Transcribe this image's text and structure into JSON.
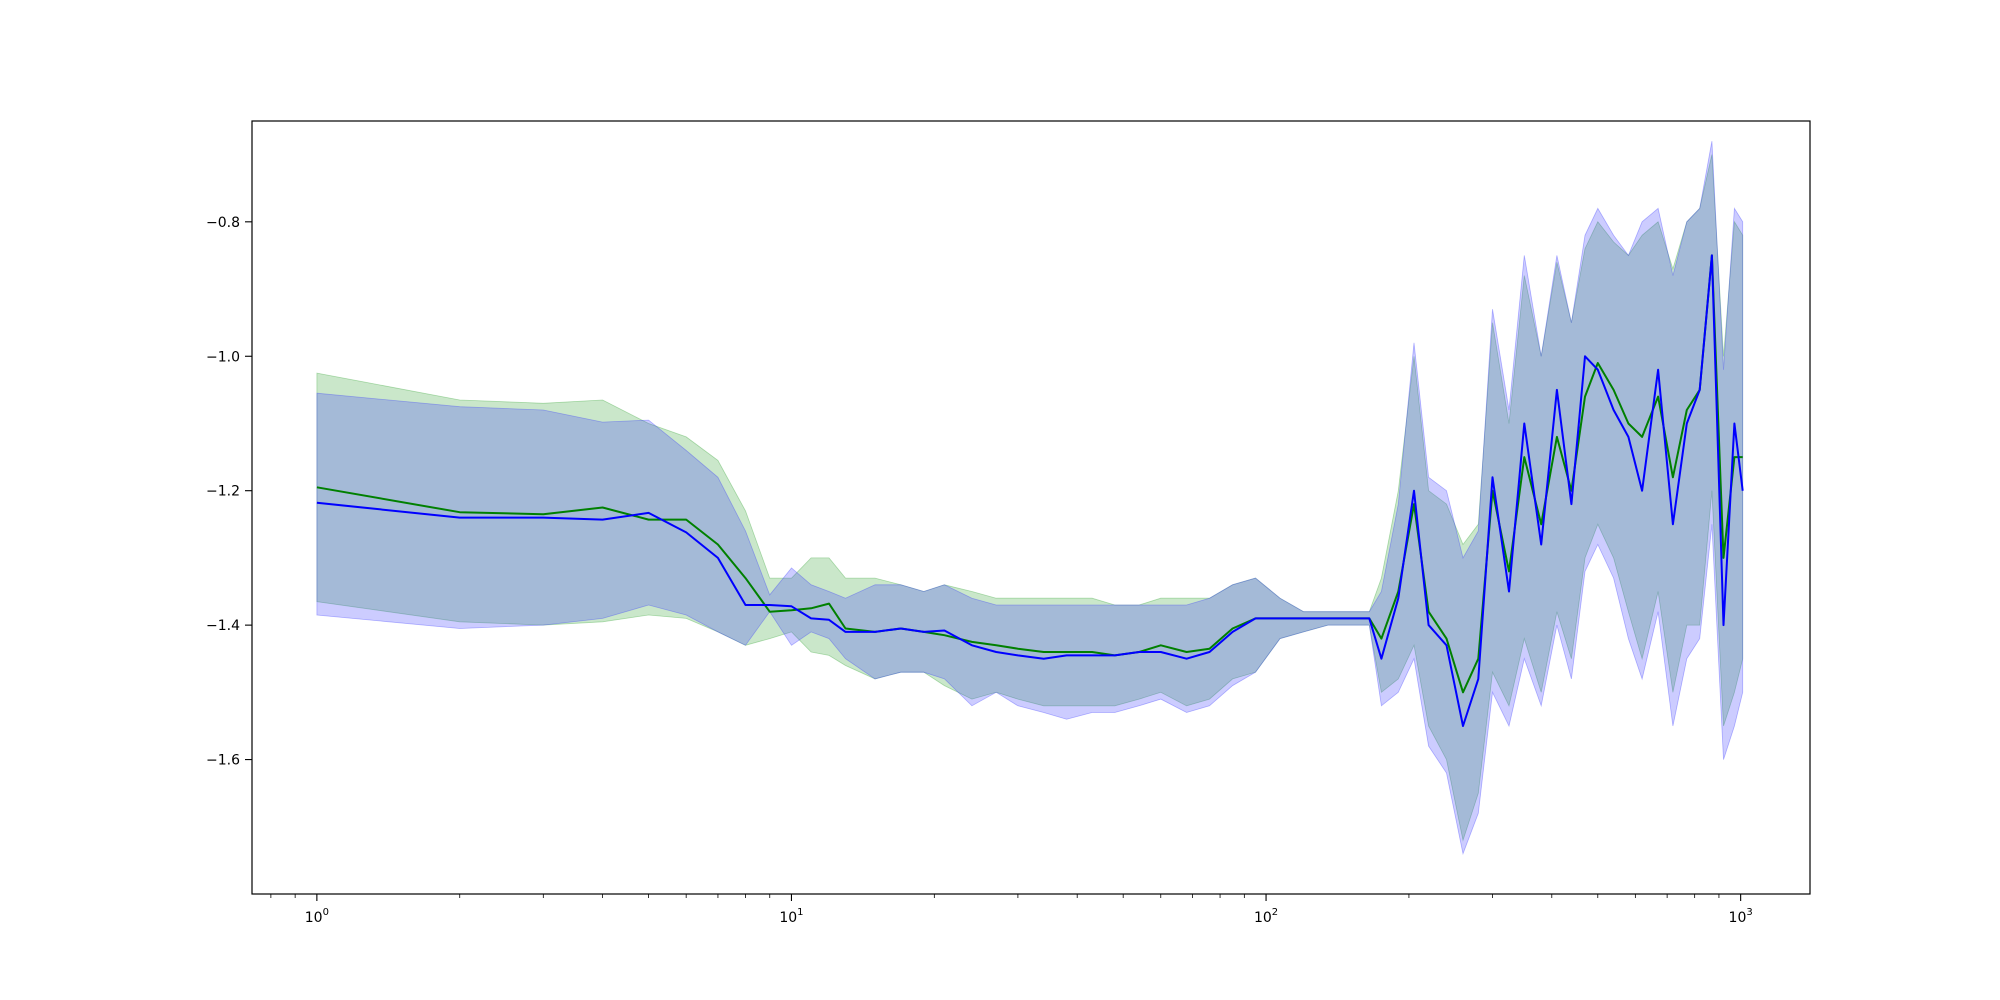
{
  "colors": {
    "green": "#008000",
    "blue": "#0000ff",
    "green_fill": "#2ca02c",
    "blue_fill": "#3333ff",
    "overlap": "#7f94c8"
  },
  "chart_data": {
    "type": "line",
    "title": "",
    "xlabel": "",
    "ylabel": "",
    "xscale": "log",
    "xlim": [
      0.73,
      1400
    ],
    "ylim": [
      -1.8,
      -0.65
    ],
    "x_tick_labels": [
      {
        "base": "10",
        "exp": "0",
        "value": 1
      },
      {
        "base": "10",
        "exp": "1",
        "value": 10
      },
      {
        "base": "10",
        "exp": "2",
        "value": 100
      },
      {
        "base": "10",
        "exp": "3",
        "value": 1000
      }
    ],
    "y_tick_labels": [
      {
        "label": "−1.6",
        "value": -1.6
      },
      {
        "label": "−1.4",
        "value": -1.4
      },
      {
        "label": "−1.2",
        "value": -1.2
      },
      {
        "label": "−1.0",
        "value": -1.0
      },
      {
        "label": "−0.8",
        "value": -0.8
      }
    ],
    "grid": false,
    "legend": "none",
    "series": [
      {
        "color_key": "green",
        "x": [
          1,
          2,
          3,
          4,
          5,
          6,
          7,
          8,
          9,
          10,
          11,
          12,
          13,
          15,
          17,
          19,
          21,
          24,
          27,
          30,
          34,
          38,
          43,
          48,
          54,
          60,
          68,
          76,
          85,
          95,
          107,
          120,
          135,
          150,
          165,
          175,
          190,
          205,
          220,
          240,
          260,
          280,
          300,
          325,
          350,
          380,
          410,
          440,
          470,
          500,
          540,
          580,
          620,
          670,
          720,
          770,
          820,
          870,
          920,
          970,
          1010
        ],
        "y": [
          -1.195,
          -1.232,
          -1.235,
          -1.225,
          -1.243,
          -1.243,
          -1.28,
          -1.33,
          -1.38,
          -1.378,
          -1.375,
          -1.368,
          -1.405,
          -1.41,
          -1.405,
          -1.41,
          -1.415,
          -1.425,
          -1.43,
          -1.435,
          -1.44,
          -1.44,
          -1.44,
          -1.445,
          -1.44,
          -1.43,
          -1.44,
          -1.435,
          -1.405,
          -1.39,
          -1.39,
          -1.39,
          -1.39,
          -1.39,
          -1.39,
          -1.42,
          -1.35,
          -1.22,
          -1.38,
          -1.42,
          -1.5,
          -1.45,
          -1.2,
          -1.32,
          -1.15,
          -1.25,
          -1.12,
          -1.2,
          -1.06,
          -1.01,
          -1.05,
          -1.1,
          -1.12,
          -1.06,
          -1.18,
          -1.08,
          -1.05,
          -0.85,
          -1.3,
          -1.15,
          -1.15
        ],
        "lower": [
          -1.365,
          -1.395,
          -1.4,
          -1.395,
          -1.385,
          -1.39,
          -1.41,
          -1.43,
          -1.42,
          -1.41,
          -1.44,
          -1.445,
          -1.46,
          -1.48,
          -1.47,
          -1.47,
          -1.49,
          -1.51,
          -1.5,
          -1.51,
          -1.52,
          -1.52,
          -1.52,
          -1.52,
          -1.51,
          -1.5,
          -1.52,
          -1.51,
          -1.48,
          -1.47,
          -1.42,
          -1.41,
          -1.4,
          -1.4,
          -1.4,
          -1.5,
          -1.48,
          -1.43,
          -1.55,
          -1.6,
          -1.72,
          -1.65,
          -1.47,
          -1.52,
          -1.42,
          -1.5,
          -1.38,
          -1.45,
          -1.3,
          -1.25,
          -1.3,
          -1.38,
          -1.45,
          -1.35,
          -1.5,
          -1.4,
          -1.4,
          -1.2,
          -1.55,
          -1.5,
          -1.45
        ],
        "upper": [
          -1.025,
          -1.065,
          -1.07,
          -1.065,
          -1.1,
          -1.12,
          -1.155,
          -1.23,
          -1.33,
          -1.33,
          -1.3,
          -1.3,
          -1.33,
          -1.33,
          -1.34,
          -1.35,
          -1.34,
          -1.35,
          -1.36,
          -1.36,
          -1.36,
          -1.36,
          -1.36,
          -1.37,
          -1.37,
          -1.36,
          -1.36,
          -1.36,
          -1.34,
          -1.33,
          -1.36,
          -1.38,
          -1.38,
          -1.38,
          -1.38,
          -1.33,
          -1.2,
          -1.0,
          -1.2,
          -1.22,
          -1.28,
          -1.25,
          -0.95,
          -1.1,
          -0.88,
          -1.0,
          -0.86,
          -0.95,
          -0.84,
          -0.8,
          -0.83,
          -0.85,
          -0.82,
          -0.8,
          -0.87,
          -0.8,
          -0.78,
          -0.7,
          -1.0,
          -0.8,
          -0.82
        ]
      },
      {
        "color_key": "blue",
        "x": [
          1,
          2,
          3,
          4,
          5,
          6,
          7,
          8,
          9,
          10,
          11,
          12,
          13,
          15,
          17,
          19,
          21,
          24,
          27,
          30,
          34,
          38,
          43,
          48,
          54,
          60,
          68,
          76,
          85,
          95,
          107,
          120,
          135,
          150,
          165,
          175,
          190,
          205,
          220,
          240,
          260,
          280,
          300,
          325,
          350,
          380,
          410,
          440,
          470,
          500,
          540,
          580,
          620,
          670,
          720,
          770,
          820,
          870,
          920,
          970,
          1010
        ],
        "y": [
          -1.218,
          -1.24,
          -1.24,
          -1.243,
          -1.233,
          -1.262,
          -1.3,
          -1.37,
          -1.37,
          -1.372,
          -1.39,
          -1.392,
          -1.41,
          -1.41,
          -1.405,
          -1.41,
          -1.408,
          -1.43,
          -1.44,
          -1.445,
          -1.45,
          -1.445,
          -1.445,
          -1.445,
          -1.44,
          -1.44,
          -1.45,
          -1.44,
          -1.41,
          -1.39,
          -1.39,
          -1.39,
          -1.39,
          -1.39,
          -1.39,
          -1.45,
          -1.36,
          -1.2,
          -1.4,
          -1.43,
          -1.55,
          -1.48,
          -1.18,
          -1.35,
          -1.1,
          -1.28,
          -1.05,
          -1.22,
          -1.0,
          -1.02,
          -1.08,
          -1.12,
          -1.2,
          -1.02,
          -1.25,
          -1.1,
          -1.05,
          -0.85,
          -1.4,
          -1.1,
          -1.2
        ],
        "lower": [
          -1.385,
          -1.405,
          -1.4,
          -1.39,
          -1.37,
          -1.385,
          -1.41,
          -1.43,
          -1.38,
          -1.43,
          -1.41,
          -1.42,
          -1.45,
          -1.48,
          -1.47,
          -1.47,
          -1.48,
          -1.52,
          -1.5,
          -1.52,
          -1.53,
          -1.54,
          -1.53,
          -1.53,
          -1.52,
          -1.51,
          -1.53,
          -1.52,
          -1.49,
          -1.47,
          -1.42,
          -1.41,
          -1.4,
          -1.4,
          -1.4,
          -1.52,
          -1.5,
          -1.45,
          -1.58,
          -1.62,
          -1.74,
          -1.68,
          -1.5,
          -1.55,
          -1.45,
          -1.52,
          -1.4,
          -1.48,
          -1.32,
          -1.28,
          -1.33,
          -1.42,
          -1.48,
          -1.38,
          -1.55,
          -1.45,
          -1.42,
          -1.25,
          -1.6,
          -1.55,
          -1.5
        ],
        "upper": [
          -1.055,
          -1.075,
          -1.08,
          -1.098,
          -1.095,
          -1.14,
          -1.18,
          -1.26,
          -1.355,
          -1.315,
          -1.34,
          -1.35,
          -1.36,
          -1.34,
          -1.34,
          -1.35,
          -1.34,
          -1.36,
          -1.37,
          -1.37,
          -1.37,
          -1.37,
          -1.37,
          -1.37,
          -1.37,
          -1.37,
          -1.37,
          -1.36,
          -1.34,
          -1.33,
          -1.36,
          -1.38,
          -1.38,
          -1.38,
          -1.38,
          -1.35,
          -1.22,
          -0.98,
          -1.18,
          -1.2,
          -1.3,
          -1.26,
          -0.93,
          -1.08,
          -0.85,
          -1.0,
          -0.85,
          -0.95,
          -0.82,
          -0.78,
          -0.82,
          -0.85,
          -0.8,
          -0.78,
          -0.88,
          -0.8,
          -0.78,
          -0.68,
          -1.02,
          -0.78,
          -0.8
        ]
      }
    ]
  }
}
